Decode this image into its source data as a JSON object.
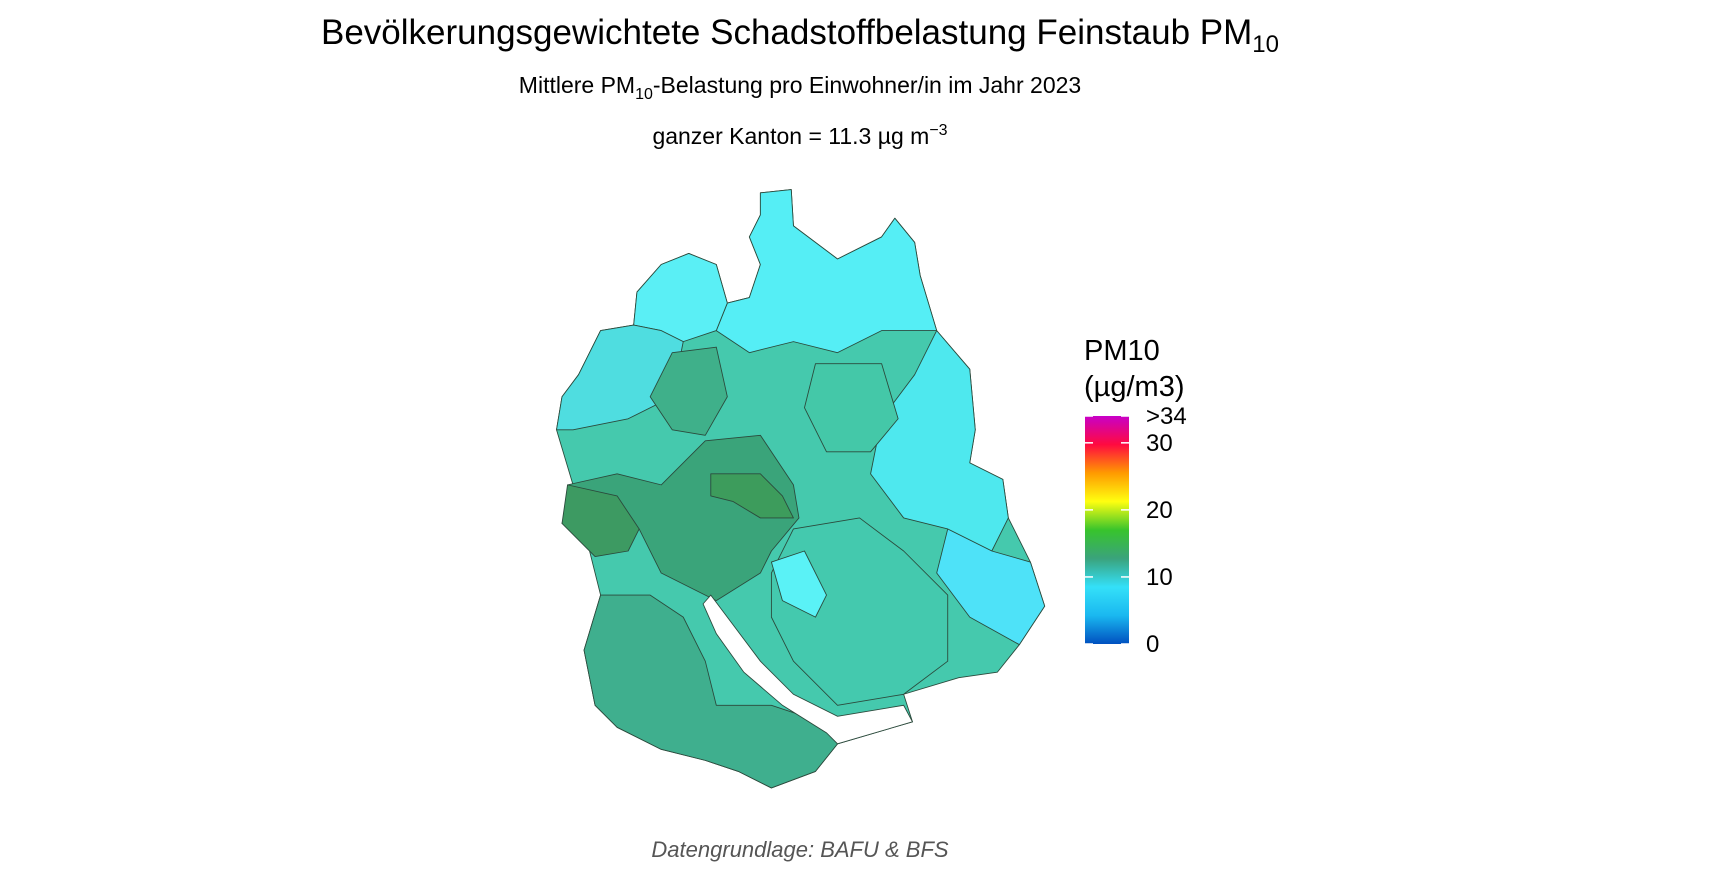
{
  "header": {
    "title": {
      "text": "Bevölkerungsgewichtete Schadstoffbelastung Feinstaub PM",
      "subscript": "10"
    },
    "subtitle": {
      "before": "Mittlere PM",
      "subscript": "10",
      "after": "-Belastung pro Einwohner/in im Jahr 2023"
    },
    "summary": {
      "text": "ganzer Kanton = 11.3 µg m",
      "superscript": "−3"
    }
  },
  "legend": {
    "title": [
      "PM10",
      "(µg/m3)"
    ],
    "range": [
      0,
      34
    ],
    "ticks": [
      0,
      10,
      20,
      30,
      {
        "value": 34,
        "label": ">34"
      }
    ],
    "colors": [
      "#0050c0",
      "#1ab8f0",
      "#34e0f8",
      "#3aa37c",
      "#38c42c",
      "#ffff10",
      "#ff9a00",
      "#ff0a40",
      "#c800c8"
    ]
  },
  "caption": "Datengrundlage: BAFU & BFS"
}
